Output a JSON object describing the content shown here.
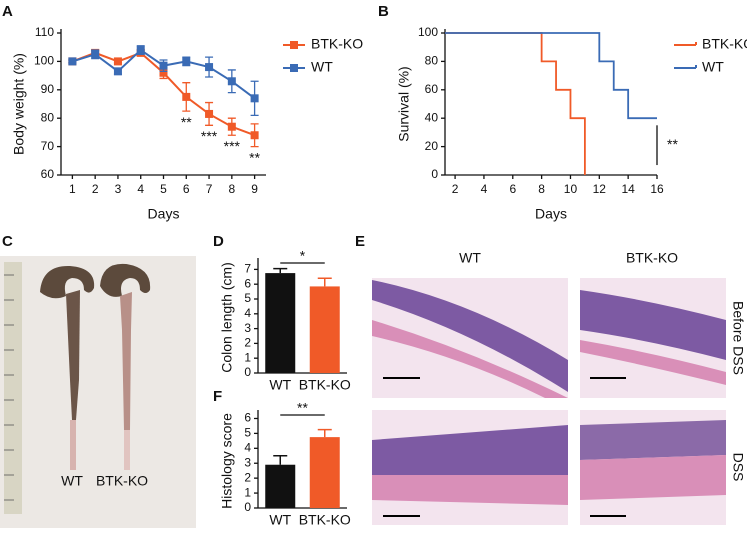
{
  "panel_labels": [
    "A",
    "B",
    "C",
    "D",
    "E",
    "F"
  ],
  "photo": {
    "labels": [
      "WT",
      "BTK-KO"
    ]
  },
  "histology": {
    "column_labels": [
      "WT",
      "BTK-KO"
    ],
    "row_labels": [
      "Before DSS",
      "DSS"
    ]
  },
  "chart_data": [
    {
      "type": "line",
      "xlabel": "Days",
      "ylabel": "Body weight (%)",
      "x": [
        1,
        2,
        3,
        4,
        5,
        6,
        7,
        8,
        9
      ],
      "series": [
        {
          "name": "BTK-KO",
          "color": "#f05a28",
          "values": [
            100,
            103,
            100,
            103,
            96,
            87.5,
            81.5,
            77,
            74
          ],
          "errors": [
            0.5,
            1,
            0.5,
            1,
            2,
            5,
            4,
            3,
            4
          ]
        },
        {
          "name": "WT",
          "color": "#3a6bb5",
          "values": [
            100,
            102.5,
            96.5,
            104,
            98.5,
            100,
            98,
            93,
            87
          ],
          "errors": [
            0.5,
            1.5,
            1,
            1.5,
            2,
            1.5,
            3.5,
            4,
            6
          ]
        }
      ],
      "significance": [
        null,
        null,
        null,
        null,
        null,
        "**",
        "***",
        "***",
        "**"
      ],
      "xlim": [
        0.5,
        9.5
      ],
      "xticks": [
        1,
        2,
        3,
        4,
        5,
        6,
        7,
        8,
        9
      ],
      "ylim": [
        60,
        110
      ],
      "yticks": [
        60,
        70,
        80,
        90,
        100,
        110
      ],
      "legend": "right"
    },
    {
      "type": "step",
      "xlabel": "Days",
      "ylabel": "Survival (%)",
      "series": [
        {
          "name": "BTK-KO",
          "color": "#f05a28",
          "x": [
            0,
            8,
            9,
            10,
            11
          ],
          "values": [
            100,
            80,
            60,
            40,
            0
          ]
        },
        {
          "name": "WT",
          "color": "#3a6bb5",
          "x": [
            0,
            12,
            13,
            14,
            16
          ],
          "values": [
            100,
            80,
            60,
            40,
            40
          ]
        }
      ],
      "significance": "**",
      "xlim": [
        1.3,
        16
      ],
      "xticks": [
        2,
        4,
        6,
        8,
        10,
        12,
        14,
        16
      ],
      "ylim": [
        0,
        100
      ],
      "yticks": [
        0,
        20,
        40,
        60,
        80,
        100
      ],
      "legend": "right"
    },
    {
      "type": "bar",
      "ylabel": "Colon length (cm)",
      "categories": [
        "WT",
        "BTK-KO"
      ],
      "values": [
        6.75,
        5.85
      ],
      "errors": [
        0.3,
        0.55
      ],
      "colors": [
        "#111111",
        "#f05a28"
      ],
      "significance": "*",
      "ylim": [
        0,
        7.5
      ],
      "yticks": [
        0,
        1,
        2,
        3,
        4,
        5,
        6,
        7
      ]
    },
    {
      "type": "bar",
      "ylabel": "Histology score",
      "categories": [
        "WT",
        "BTK-KO"
      ],
      "values": [
        2.9,
        4.75
      ],
      "errors": [
        0.6,
        0.5
      ],
      "colors": [
        "#111111",
        "#f05a28"
      ],
      "significance": "**",
      "ylim": [
        0,
        6.3
      ],
      "yticks": [
        0,
        1,
        2,
        3,
        4,
        5,
        6
      ]
    }
  ]
}
